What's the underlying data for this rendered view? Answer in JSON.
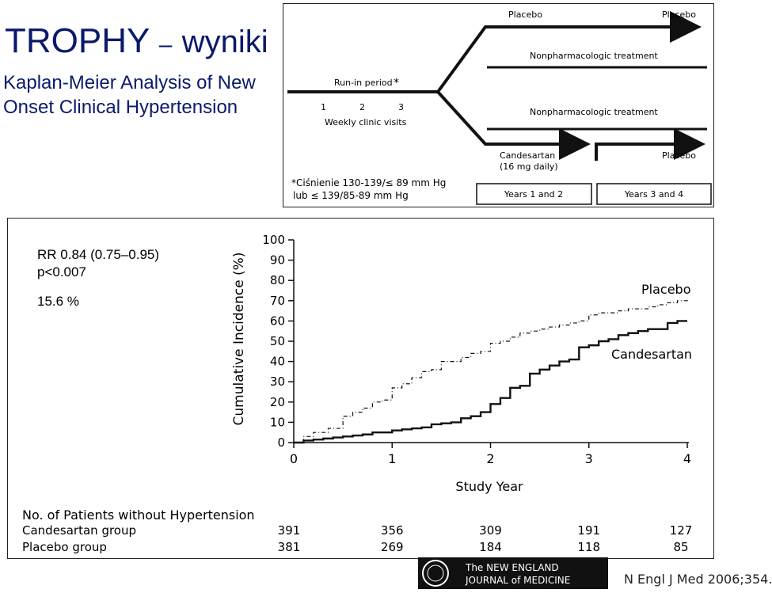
{
  "slide": {
    "title_main": "TROPHY",
    "title_dash": "–",
    "title_sub": "wyniki",
    "subtitle": "Kaplan-Meier Analysis of New Onset Clinical Hypertension"
  },
  "design": {
    "placebo_left": "Placebo",
    "placebo_right": "Placebo",
    "nonpharm_top": "Nonpharmacologic treatment",
    "nonpharm_bottom": "Nonpharmacologic treatment",
    "run_in": "Run-in period",
    "run_in_star": "*",
    "visits": [
      "1",
      "2",
      "3"
    ],
    "weekly": "Weekly clinic visits",
    "candesartan": "Candesartan",
    "dose": "(16 mg daily)",
    "placebo_late": "Placebo",
    "years_1_2": "Years 1 and 2",
    "years_3_4": "Years 3 and 4",
    "footnote_line1": "*Ciśnienie 130-139/≤ 89 mm Hg",
    "footnote_line2": "lub ≤ 139/85-89 mm Hg"
  },
  "stats": {
    "rr": "RR 0.84 (0.75–0.95)",
    "p": "p<0.007",
    "pct": "15.6 %"
  },
  "chart_data": {
    "type": "line",
    "ylabel": "Cumulative Incidence (%)",
    "xlabel": "Study Year",
    "xlim": [
      0,
      4
    ],
    "ylim": [
      0,
      100
    ],
    "xticks": [
      "0",
      "1",
      "2",
      "3",
      "4"
    ],
    "yticks": [
      "0",
      "10",
      "20",
      "30",
      "40",
      "50",
      "60",
      "70",
      "80",
      "90",
      "100"
    ],
    "series": [
      {
        "name": "Placebo",
        "style": "dashed",
        "x": [
          0,
          0.1,
          0.2,
          0.35,
          0.5,
          0.6,
          0.7,
          0.8,
          0.9,
          1.0,
          1.1,
          1.2,
          1.3,
          1.4,
          1.5,
          1.6,
          1.7,
          1.8,
          1.9,
          2.0,
          2.1,
          2.2,
          2.3,
          2.4,
          2.5,
          2.6,
          2.7,
          2.8,
          2.9,
          3.0,
          3.1,
          3.2,
          3.3,
          3.4,
          3.5,
          3.6,
          3.7,
          3.8,
          3.9,
          4.0
        ],
        "y": [
          0,
          3,
          5,
          7,
          13,
          15,
          17,
          20,
          21,
          27,
          29,
          32,
          35,
          36,
          40,
          40,
          42,
          44,
          45,
          49,
          50,
          52,
          54,
          55,
          56,
          57,
          58,
          59,
          60,
          63,
          64,
          64,
          65,
          66,
          66,
          67,
          68,
          69,
          70,
          71
        ]
      },
      {
        "name": "Candesartan",
        "style": "solid",
        "x": [
          0,
          0.1,
          0.2,
          0.3,
          0.4,
          0.5,
          0.6,
          0.7,
          0.8,
          0.9,
          1.0,
          1.1,
          1.2,
          1.3,
          1.4,
          1.5,
          1.6,
          1.7,
          1.8,
          1.9,
          2.0,
          2.1,
          2.2,
          2.3,
          2.4,
          2.5,
          2.6,
          2.7,
          2.8,
          2.9,
          3.0,
          3.1,
          3.2,
          3.3,
          3.4,
          3.5,
          3.6,
          3.7,
          3.8,
          3.9,
          4.0
        ],
        "y": [
          0,
          1,
          1.5,
          2,
          2.5,
          3,
          3.5,
          4,
          5,
          5,
          6,
          6.5,
          7,
          7.5,
          9,
          9.5,
          10,
          12,
          13,
          15,
          19,
          22,
          27,
          28,
          34,
          36,
          38,
          40,
          41,
          47,
          48,
          50,
          51,
          53,
          54,
          55,
          56,
          56,
          59,
          60,
          60
        ]
      }
    ],
    "table": {
      "title": "No. of Patients without Hypertension",
      "rows": [
        {
          "label": "Candesartan group",
          "values": [
            "391",
            "356",
            "309",
            "191",
            "127"
          ]
        },
        {
          "label": "Placebo group",
          "values": [
            "381",
            "269",
            "184",
            "118",
            "85"
          ]
        }
      ]
    }
  },
  "footer": {
    "journal_line1": "The NEW ENGLAND",
    "journal_line2": "JOURNAL of MEDICINE",
    "citation": "N Engl J Med 2006;354."
  },
  "colors": {
    "title": "#0a1a6b",
    "line": "#000000",
    "logo_bg": "#111111"
  }
}
